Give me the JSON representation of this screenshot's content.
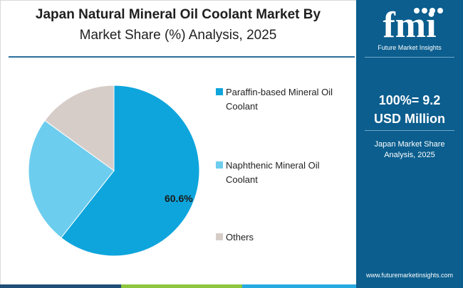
{
  "header": {
    "title_line1": "Japan Natural Mineral Oil Coolant Market By",
    "title_line2": "Market Share (%) Analysis, 2025"
  },
  "sidebar": {
    "logo_text": "fmi",
    "logo_subtitle": "Future Market Insights",
    "total_line1": "100%= 9.2",
    "total_line2": "USD Million",
    "caption_line1": "Japan Market Share",
    "caption_line2": "Analysis, 2025",
    "website": "www.futuremarketinsights.com"
  },
  "colors": {
    "sidebar_bg": "#0b5e8e",
    "paraffin": "#0ea5dc",
    "naphthenic": "#6dcdee",
    "others": "#d7cdc8",
    "bar_blue": "#1f4e79",
    "bar_green": "#8dc63f",
    "bar_teal": "#27a9e1"
  },
  "chart_data": {
    "type": "pie",
    "title": "Japan Natural Mineral Oil Coolant Market By Market Share (%) Analysis, 2025",
    "unit": "%",
    "total_label": "100%= 9.2 USD Million",
    "legend_position": "right",
    "slices": [
      {
        "name": "Paraffin-based Mineral Oil Coolant",
        "value": 60.6,
        "color": "#0ea5dc",
        "label": "60.6%"
      },
      {
        "name": "Naphthenic Mineral Oil Coolant",
        "value": 24.4,
        "color": "#6dcdee",
        "label": ""
      },
      {
        "name": "Others",
        "value": 15.0,
        "color": "#d7cdc8",
        "label": ""
      }
    ]
  }
}
